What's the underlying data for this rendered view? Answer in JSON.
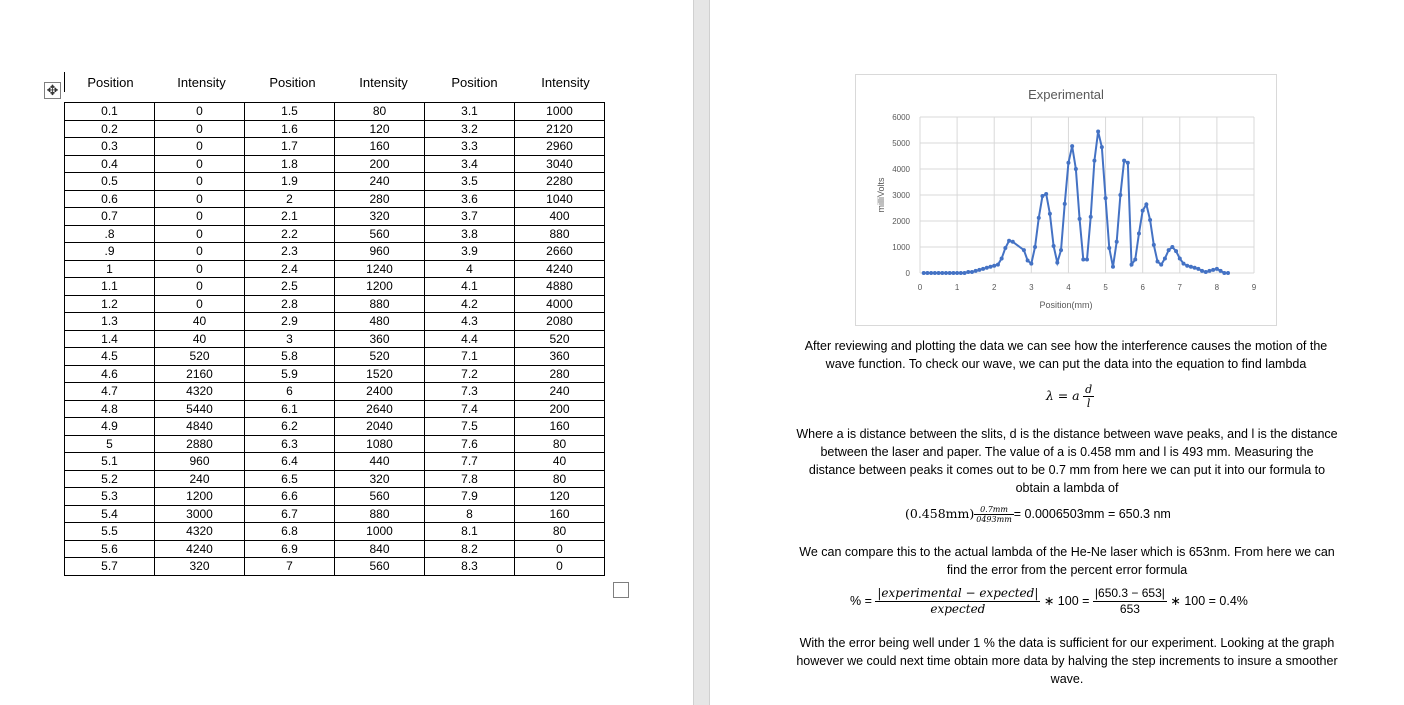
{
  "table": {
    "headers": [
      "Position",
      "Intensity",
      "Position",
      "Intensity",
      "Position",
      "Intensity"
    ],
    "rows": [
      [
        "0.1",
        "0",
        "1.5",
        "80",
        "3.1",
        "1000"
      ],
      [
        "0.2",
        "0",
        "1.6",
        "120",
        "3.2",
        "2120"
      ],
      [
        "0.3",
        "0",
        "1.7",
        "160",
        "3.3",
        "2960"
      ],
      [
        "0.4",
        "0",
        "1.8",
        "200",
        "3.4",
        "3040"
      ],
      [
        "0.5",
        "0",
        "1.9",
        "240",
        "3.5",
        "2280"
      ],
      [
        "0.6",
        "0",
        "2",
        "280",
        "3.6",
        "1040"
      ],
      [
        "0.7",
        "0",
        "2.1",
        "320",
        "3.7",
        "400"
      ],
      [
        ".8",
        "0",
        "2.2",
        "560",
        "3.8",
        "880"
      ],
      [
        ".9",
        "0",
        "2.3",
        "960",
        "3.9",
        "2660"
      ],
      [
        "1",
        "0",
        "2.4",
        "1240",
        "4",
        "4240"
      ],
      [
        "1.1",
        "0",
        "2.5",
        "1200",
        "4.1",
        "4880"
      ],
      [
        "1.2",
        "0",
        "2.8",
        "880",
        "4.2",
        "4000"
      ],
      [
        "1.3",
        "40",
        "2.9",
        "480",
        "4.3",
        "2080"
      ],
      [
        "1.4",
        "40",
        "3",
        "360",
        "4.4",
        "520"
      ],
      [
        "4.5",
        "520",
        "5.8",
        "520",
        "7.1",
        "360"
      ],
      [
        "4.6",
        "2160",
        "5.9",
        "1520",
        "7.2",
        "280"
      ],
      [
        "4.7",
        "4320",
        "6",
        "2400",
        "7.3",
        "240"
      ],
      [
        "4.8",
        "5440",
        "6.1",
        "2640",
        "7.4",
        "200"
      ],
      [
        "4.9",
        "4840",
        "6.2",
        "2040",
        "7.5",
        "160"
      ],
      [
        "5",
        "2880",
        "6.3",
        "1080",
        "7.6",
        "80"
      ],
      [
        "5.1",
        "960",
        "6.4",
        "440",
        "7.7",
        "40"
      ],
      [
        "5.2",
        "240",
        "6.5",
        "320",
        "7.8",
        "80"
      ],
      [
        "5.3",
        "1200",
        "6.6",
        "560",
        "7.9",
        "120"
      ],
      [
        "5.4",
        "3000",
        "6.7",
        "880",
        "8",
        "160"
      ],
      [
        "5.5",
        "4320",
        "6.8",
        "1000",
        "8.1",
        "80"
      ],
      [
        "5.6",
        "4240",
        "6.9",
        "840",
        "8.2",
        "0"
      ],
      [
        "5.7",
        "320",
        "7",
        "560",
        "8.3",
        "0"
      ]
    ]
  },
  "chart_data": {
    "type": "scatter",
    "title": "Experimental",
    "xlabel": "Position(mm)",
    "ylabel": "milliVolts",
    "xlim": [
      0,
      9
    ],
    "ylim": [
      0,
      6000
    ],
    "xticks": [
      "0",
      "1",
      "2",
      "3",
      "4",
      "5",
      "6",
      "7",
      "8",
      "9"
    ],
    "yticks": [
      "0",
      "1000",
      "2000",
      "3000",
      "4000",
      "5000",
      "6000"
    ],
    "grid": true,
    "series_color": "#4472c4",
    "x": [
      0.1,
      0.2,
      0.3,
      0.4,
      0.5,
      0.6,
      0.7,
      0.8,
      0.9,
      1,
      1.1,
      1.2,
      1.3,
      1.4,
      1.5,
      1.6,
      1.7,
      1.8,
      1.9,
      2,
      2.1,
      2.2,
      2.3,
      2.4,
      2.5,
      2.8,
      2.9,
      3,
      3.1,
      3.2,
      3.3,
      3.4,
      3.5,
      3.6,
      3.7,
      3.8,
      3.9,
      4,
      4.1,
      4.2,
      4.3,
      4.4,
      4.5,
      4.6,
      4.7,
      4.8,
      4.9,
      5,
      5.1,
      5.2,
      5.3,
      5.4,
      5.5,
      5.6,
      5.7,
      5.8,
      5.9,
      6,
      6.1,
      6.2,
      6.3,
      6.4,
      6.5,
      6.6,
      6.7,
      6.8,
      6.9,
      7,
      7.1,
      7.2,
      7.3,
      7.4,
      7.5,
      7.6,
      7.7,
      7.8,
      7.9,
      8,
      8.1,
      8.2,
      8.3
    ],
    "y": [
      0,
      0,
      0,
      0,
      0,
      0,
      0,
      0,
      0,
      0,
      0,
      0,
      40,
      40,
      80,
      120,
      160,
      200,
      240,
      280,
      320,
      560,
      960,
      1240,
      1200,
      880,
      480,
      360,
      1000,
      2120,
      2960,
      3040,
      2280,
      1040,
      400,
      880,
      2660,
      4240,
      4880,
      4000,
      2080,
      520,
      520,
      2160,
      4320,
      5440,
      4840,
      2880,
      960,
      240,
      1200,
      3000,
      4320,
      4240,
      320,
      520,
      1520,
      2400,
      2640,
      2040,
      1080,
      440,
      320,
      560,
      880,
      1000,
      840,
      560,
      360,
      280,
      240,
      200,
      160,
      80,
      40,
      80,
      120,
      160,
      80,
      0,
      0
    ]
  },
  "text": {
    "p1": "After reviewing and plotting the data we can see how the interference causes the motion of the wave function. To check our wave, we can put the data into the equation to find lambda",
    "eq1_lhs": "λ = a",
    "eq1_num": "d",
    "eq1_den": "l",
    "p2": "Where a is distance between the slits, d is the distance between wave peaks, and l is the distance between the laser and paper. The value of a is 0.458 mm and l is 493 mm. Measuring the distance between peaks it comes out to be 0.7 mm from here we can put it into our formula to obtain a lambda of",
    "eq2_a": "(0.458mm)",
    "eq2_num": "0.7mm",
    "eq2_den": "0493mm",
    "eq2_rest": "= 0.0006503mm = 650.3 nm",
    "p3": "We can compare this to the actual lambda of the He-Ne laser which is 653nm. From here we can find the error from the percent error formula",
    "eq3_pct": "% =",
    "eq3_num1": "|experimental − expected|",
    "eq3_den1": "expected",
    "eq3_mid": "∗ 100 =",
    "eq3_num2": "|650.3 − 653|",
    "eq3_den2": "653",
    "eq3_end": "∗ 100 = 0.4%",
    "p4": "With the error being well under 1 % the data is sufficient for our experiment. Looking at the graph however we could next time obtain more data by halving the step increments to insure a smoother wave."
  },
  "icons": {
    "move": "move-arrows-icon",
    "resize": "table-resize-icon"
  }
}
